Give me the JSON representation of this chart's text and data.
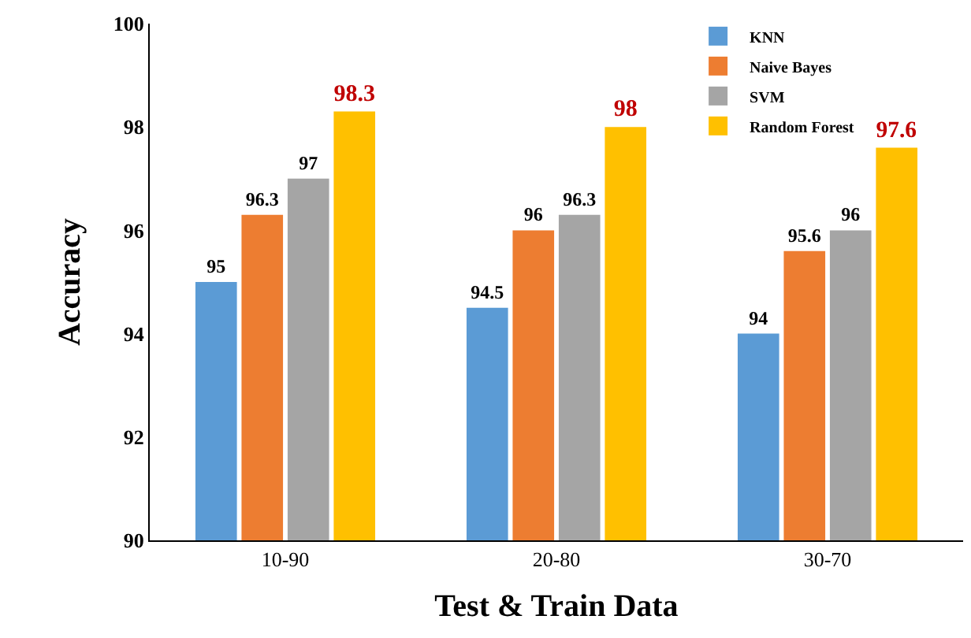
{
  "chart_data": {
    "type": "bar",
    "xlabel": "Test & Train Data",
    "ylabel": "Accuracy",
    "categories": [
      "10-90",
      "20-80",
      "30-70"
    ],
    "series": [
      {
        "name": "KNN",
        "color": "#5b9bd5",
        "values": [
          95,
          94.5,
          94
        ]
      },
      {
        "name": "Naive Bayes",
        "color": "#ed7d31",
        "values": [
          96.3,
          96,
          95.6
        ]
      },
      {
        "name": "SVM",
        "color": "#a5a5a5",
        "values": [
          97,
          96.3,
          96
        ]
      },
      {
        "name": "Random Forest",
        "color": "#ffc000",
        "values": [
          98.3,
          98,
          97.6
        ]
      }
    ],
    "ylim": [
      90,
      100
    ],
    "yticks": [
      90,
      92,
      94,
      96,
      98,
      100
    ],
    "grid": false,
    "legend": "top right",
    "data_labels": true
  }
}
